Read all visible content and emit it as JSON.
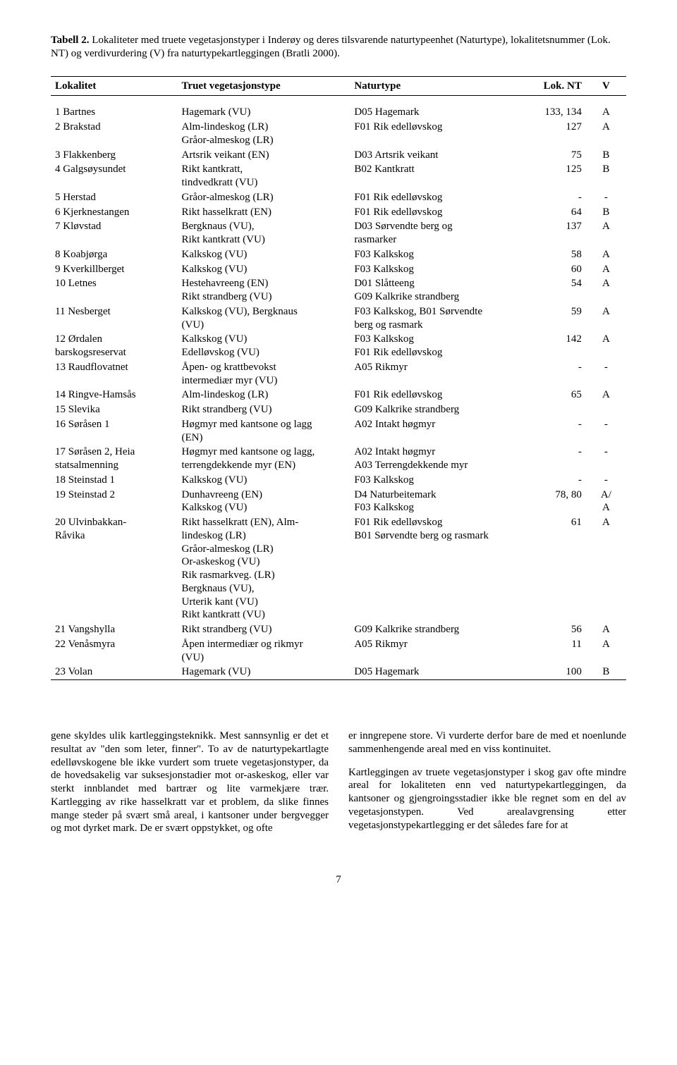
{
  "caption": {
    "label": "Tabell 2.",
    "text": " Lokaliteter med truete vegetasjonstyper i Inderøy og deres tilsvarende naturtypeenhet (Naturtype), lokalitetsnummer (Lok. NT) og verdivurdering (V) fra naturtypekartleggingen (Bratli 2000)."
  },
  "headers": {
    "c1": "Lokalitet",
    "c2": "Truet vegetasjonstype",
    "c3": "Naturtype",
    "c4": "Lok. NT",
    "c5": "V"
  },
  "rows": [
    {
      "c1": "1 Bartnes",
      "c2": "Hagemark (VU)",
      "c3": "D05 Hagemark",
      "c4": "133, 134",
      "c5": "A"
    },
    {
      "c1": "2 Brakstad",
      "c2": "Alm-lindeskog (LR)\nGråor-almeskog (LR)",
      "c3": "F01 Rik edelløvskog",
      "c4": "127",
      "c5": "A"
    },
    {
      "c1": "3 Flakkenberg",
      "c2": "Artsrik veikant (EN)",
      "c3": "D03 Artsrik veikant",
      "c4": "75",
      "c5": "B"
    },
    {
      "c1": "4 Galgsøysundet",
      "c2": "Rikt kantkratt,\ntindvedkratt (VU)",
      "c3": "B02 Kantkratt",
      "c4": "125",
      "c5": "B"
    },
    {
      "c1": "5 Herstad",
      "c2": "Gråor-almeskog (LR)",
      "c3": "F01 Rik edelløvskog",
      "c4": "-",
      "c5": "-"
    },
    {
      "c1": "6 Kjerknestangen",
      "c2": "Rikt hasselkratt (EN)",
      "c3": "F01 Rik edelløvskog",
      "c4": "64",
      "c5": "B"
    },
    {
      "c1": "7 Kløvstad",
      "c2": "Bergknaus (VU),\nRikt kantkratt (VU)",
      "c3": "D03 Sørvendte berg og\nrasmarker",
      "c4": "137",
      "c5": "A"
    },
    {
      "c1": "8 Koabjørga",
      "c2": "Kalkskog (VU)",
      "c3": "F03 Kalkskog",
      "c4": "58",
      "c5": "A"
    },
    {
      "c1": "9 Kverkillberget",
      "c2": "Kalkskog (VU)",
      "c3": "F03 Kalkskog",
      "c4": "60",
      "c5": "A"
    },
    {
      "c1": "10 Letnes",
      "c2": "Hestehavreeng (EN)\nRikt strandberg (VU)",
      "c3": "D01 Slåtteeng\nG09 Kalkrike strandberg",
      "c4": "54",
      "c5": "A"
    },
    {
      "c1": "11 Nesberget",
      "c2": "Kalkskog (VU), Bergknaus\n(VU)",
      "c3": "F03 Kalkskog, B01 Sørvendte\nberg og rasmark",
      "c4": "59",
      "c5": "A"
    },
    {
      "c1": "12 Ørdalen\nbarskogsreservat",
      "c2": "Kalkskog (VU)\nEdelløvskog (VU)",
      "c3": "F03 Kalkskog\nF01 Rik edelløvskog",
      "c4": "142",
      "c5": "A"
    },
    {
      "c1": "13 Raudflovatnet",
      "c2": "Åpen- og krattbevokst\nintermediær myr (VU)",
      "c3": "A05 Rikmyr",
      "c4": "-",
      "c5": "-"
    },
    {
      "c1": "14 Ringve-Hamsås",
      "c2": "Alm-lindeskog (LR)",
      "c3": "F01 Rik edelløvskog",
      "c4": "65",
      "c5": "A"
    },
    {
      "c1": "15 Slevika",
      "c2": "Rikt strandberg (VU)",
      "c3": "G09 Kalkrike strandberg",
      "c4": "",
      "c5": ""
    },
    {
      "c1": "16 Søråsen 1",
      "c2": "Høgmyr med kantsone og lagg\n(EN)",
      "c3": "A02 Intakt høgmyr",
      "c4": "-",
      "c5": "-"
    },
    {
      "c1": "17 Søråsen 2, Heia\nstatsalmenning",
      "c2": "Høgmyr med kantsone og lagg,\nterrengdekkende myr (EN)",
      "c3": "A02 Intakt høgmyr\nA03 Terrengdekkende myr",
      "c4": "-",
      "c5": "-"
    },
    {
      "c1": "18 Steinstad 1",
      "c2": "Kalkskog (VU)",
      "c3": "F03 Kalkskog",
      "c4": "-",
      "c5": "-"
    },
    {
      "c1": "19 Steinstad 2",
      "c2": "Dunhavreeng (EN)\nKalkskog (VU)",
      "c3": "D4 Naturbeitemark\nF03 Kalkskog",
      "c4": "78, 80",
      "c5": "A/\nA"
    },
    {
      "c1": "20 Ulvinbakkan-\nRåvika",
      "c2": "Rikt hasselkratt (EN), Alm-\nlindeskog (LR)\nGråor-almeskog (LR)\nOr-askeskog (VU)\nRik rasmarkveg. (LR)\nBergknaus (VU),\nUrterik kant (VU)\nRikt kantkratt (VU)",
      "c3": "F01 Rik edelløvskog\nB01 Sørvendte berg og rasmark",
      "c4": "61",
      "c5": "A"
    },
    {
      "c1": "21 Vangshylla",
      "c2": "Rikt strandberg (VU)",
      "c3": "G09 Kalkrike strandberg",
      "c4": "56",
      "c5": "A"
    },
    {
      "c1": "22 Venåsmyra",
      "c2": "Åpen intermediær og rikmyr\n(VU)",
      "c3": "A05 Rikmyr",
      "c4": "11",
      "c5": "A"
    },
    {
      "c1": "23 Volan",
      "c2": "Hagemark (VU)",
      "c3": "D05 Hagemark",
      "c4": "100",
      "c5": "B"
    }
  ],
  "body": {
    "left_p1": "gene skyldes ulik kartleggingsteknikk. Mest sannsynlig er det et resultat av \"den som leter, finner\". To av de naturtypekartlagte edelløvskogene ble ikke vurdert som truete vegetasjonstyper, da de hovedsakelig var suksesjonstadier mot or-askeskog, eller var sterkt innblandet med bartrær og lite varmekjære trær. Kartlegging av rike hasselkratt var et problem, da slike finnes mange steder på svært små areal, i kantsoner under bergvegger og mot dyrket mark. De er svært oppstykket, og ofte",
    "right_p1": "er inngrepene store. Vi vurderte derfor bare de med et noenlunde sammenhengende areal med en viss kontinuitet.",
    "right_p2": "Kartleggingen av truete vegetasjonstyper i skog gav ofte mindre areal for lokaliteten enn ved naturtypekartleggingen, da kantsoner og gjengroingsstadier ikke ble regnet som en del av vegetasjonstypen. Ved arealavgrensing etter vegetasjonstypekartlegging er det således fare for at"
  },
  "page_number": "7",
  "style": {
    "col_widths": [
      "22%",
      "30%",
      "30%",
      "11%",
      "7%"
    ]
  }
}
